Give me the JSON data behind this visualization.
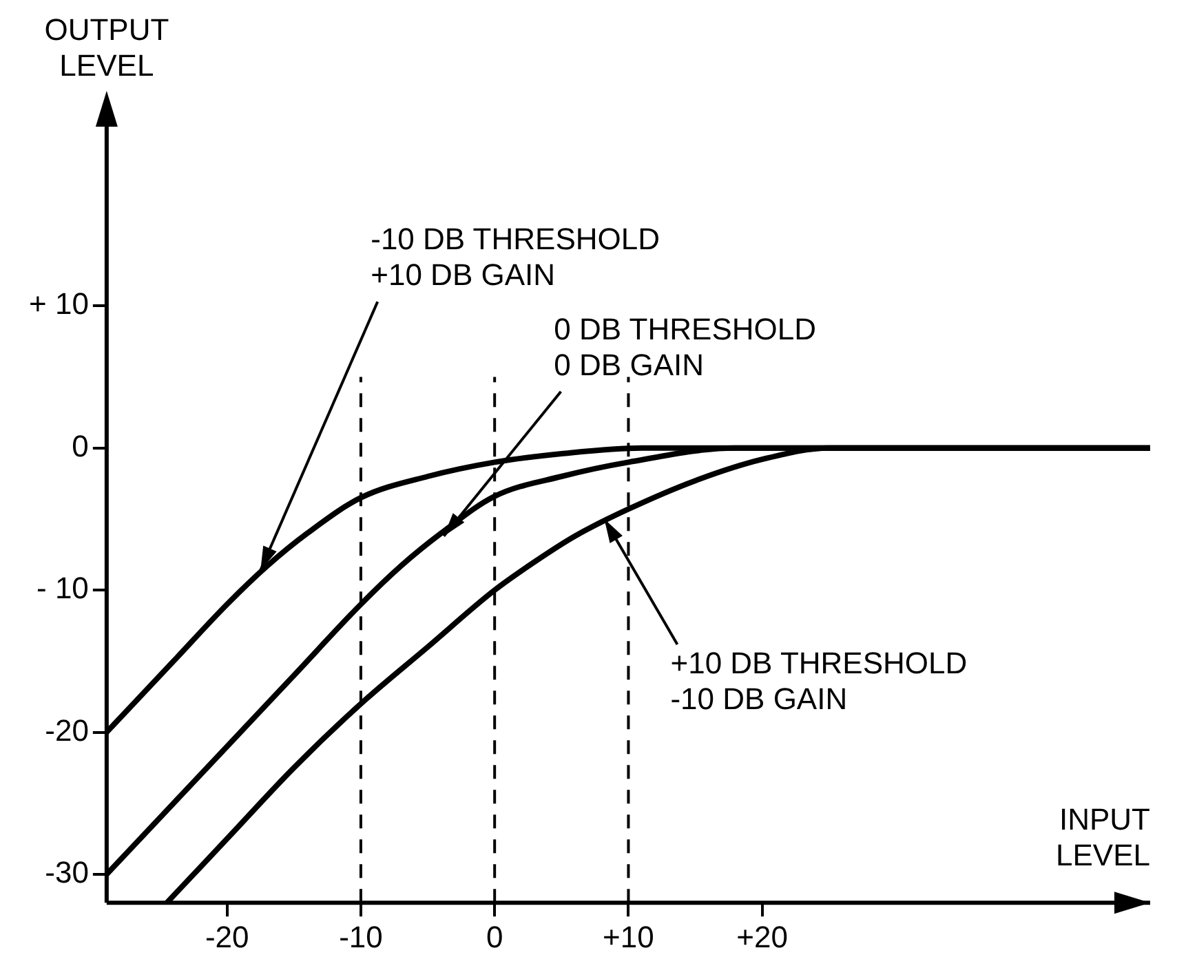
{
  "chart_data": {
    "type": "line",
    "xlabel": "INPUT\nLEVEL",
    "ylabel": "OUTPUT\nLEVEL",
    "series": [
      {
        "color": "#000000",
        "x": [
          -29,
          -24,
          -20,
          -17,
          -14,
          -10,
          -5,
          0,
          5,
          11,
          20,
          30,
          49
        ],
        "values": [
          -20,
          -15,
          -11,
          -8.3,
          -6,
          -3.5,
          -2,
          -1,
          -0.4,
          0,
          0,
          0,
          0
        ]
      },
      {
        "color": "#000000",
        "x": [
          -29,
          -24,
          -20,
          -15,
          -10,
          -7,
          -4,
          0,
          5,
          10,
          18,
          30,
          49
        ],
        "values": [
          -30,
          -25,
          -21,
          -16,
          -11,
          -8.3,
          -6,
          -3.4,
          -2,
          -1,
          0,
          0,
          0
        ]
      },
      {
        "color": "#000000",
        "x": [
          -24.5,
          -20,
          -15,
          -10,
          -5,
          0,
          3,
          6,
          10,
          15,
          20,
          25,
          49
        ],
        "values": [
          -32,
          -27.5,
          -22.5,
          -18,
          -14,
          -10,
          -8,
          -6.2,
          -4.3,
          -2.3,
          -0.8,
          0,
          0
        ]
      }
    ],
    "xlim": [
      -29,
      49
    ],
    "ylim": [
      -32,
      23
    ],
    "xticks": [
      -20,
      -10,
      0,
      {
        "value": 10,
        "label": "+10"
      },
      {
        "value": 20,
        "label": "+20"
      }
    ],
    "yticks": [
      {
        "value": 10,
        "label": "+ 10"
      },
      0,
      {
        "value": -10,
        "label": "- 10"
      },
      -20,
      -30
    ],
    "ref_lines": [
      {
        "axis": "x",
        "value": -10,
        "line_style": "dashed"
      },
      {
        "axis": "x",
        "value": 0,
        "line_style": "dashed"
      },
      {
        "axis": "x",
        "value": 10,
        "line_style": "dashed"
      }
    ],
    "annotations": [
      {
        "text": "-10 DB THRESHOLD\n+10 DB GAIN",
        "x": -17.5,
        "y": -8.6
      },
      {
        "text": "0 DB THRESHOLD\n0 DB GAIN",
        "x": -3.8,
        "y": -6.2
      },
      {
        "text": "+10 DB THRESHOLD\n-10 DB GAIN",
        "x": 8.2,
        "y": -5
      }
    ],
    "grid": false,
    "legend": false,
    "marker": "none",
    "line_style": "solid"
  }
}
